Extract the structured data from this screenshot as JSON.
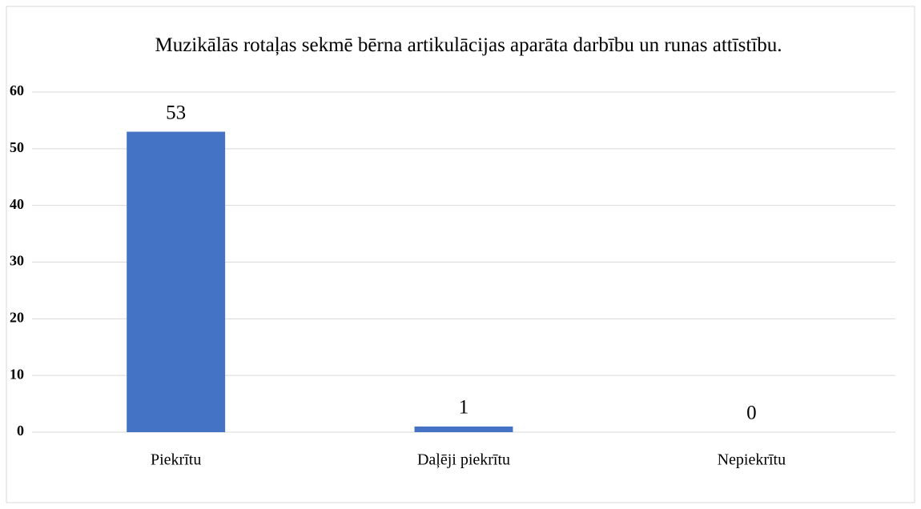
{
  "chart_data": {
    "type": "bar",
    "title": "Muzikālās rotaļas sekmē bērna artikulācijas aparāta darbību un runas attīstību.",
    "categories": [
      "Piekrītu",
      "Daļēji piekrītu",
      "Nepiekrītu"
    ],
    "values": [
      53,
      1,
      0
    ],
    "color": "#4472c4",
    "ylim": [
      0,
      60
    ],
    "yticks": [
      0,
      10,
      20,
      30,
      40,
      50,
      60
    ],
    "grid": true
  }
}
